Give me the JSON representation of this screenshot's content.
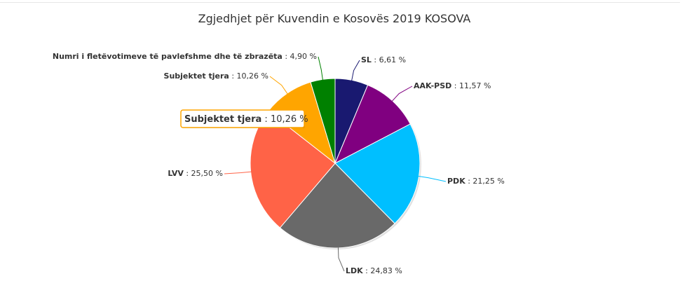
{
  "chart_data": {
    "type": "pie",
    "title": "Zgjedhjet për Kuvendin e Kosovës 2019 KOSOVA",
    "slices": [
      {
        "name": "SL",
        "value": 6.61,
        "label": "6,61 %",
        "color": "#191970"
      },
      {
        "name": "AAK-PSD",
        "value": 11.57,
        "label": "11,57 %",
        "color": "#800080"
      },
      {
        "name": "PDK",
        "value": 21.25,
        "label": "21,25 %",
        "color": "#00BFFF"
      },
      {
        "name": "LDK",
        "value": 24.83,
        "label": "24,83 %",
        "color": "#696969"
      },
      {
        "name": "LVV",
        "value": 25.5,
        "label": "25,50 %",
        "color": "#FF6347"
      },
      {
        "name": "Subjektet tjera",
        "value": 10.26,
        "label": "10,26 %",
        "color": "#FFA500"
      },
      {
        "name": "Numri i fletëvotimeve të pavlefshme dhe të zbrazëta",
        "value": 4.9,
        "label": "4,90 %",
        "color": "#008000"
      }
    ],
    "tooltip": {
      "name": "Subjektet tjera",
      "label": "10,26 %",
      "border_color": "#FFA500"
    }
  }
}
